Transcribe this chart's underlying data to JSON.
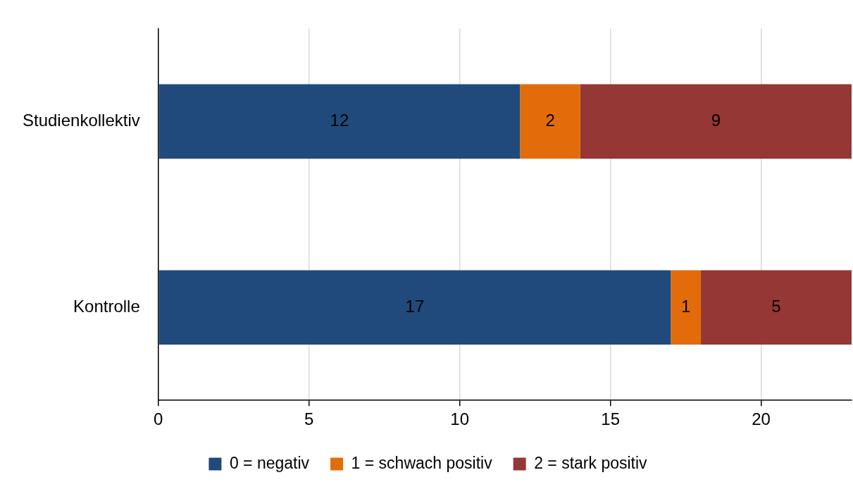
{
  "chart_data": {
    "type": "bar",
    "orientation": "horizontal",
    "stacked": true,
    "categories": [
      "Studienkollektiv",
      "Kontrolle"
    ],
    "series": [
      {
        "name": "0 = negativ",
        "color": "#214a7c",
        "values": [
          12,
          17
        ]
      },
      {
        "name": "1 = schwach positiv",
        "color": "#e36c0a",
        "values": [
          2,
          1
        ]
      },
      {
        "name": "2 = stark positiv",
        "color": "#953735",
        "values": [
          9,
          5
        ]
      }
    ],
    "xlim": [
      0,
      23
    ],
    "xticks": [
      0,
      5,
      10,
      15,
      20
    ],
    "grid": "x",
    "legend": "bottom",
    "data_labels": true
  }
}
